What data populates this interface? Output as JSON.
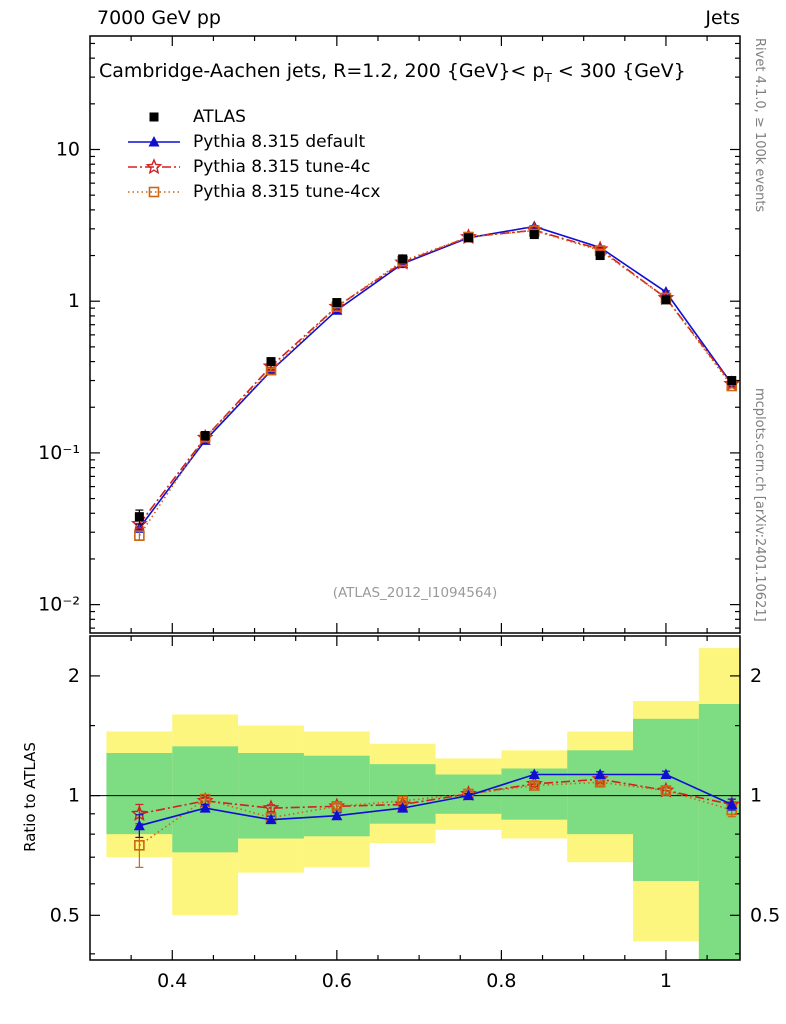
{
  "header": {
    "left": "7000 GeV pp",
    "right": "Jets"
  },
  "title": {
    "pre": "Cambridge-Aachen jets, R=1.2,  200 {GeV}< p",
    "sub": "T",
    "post": " < 300 {GeV}"
  },
  "watermark": "(ATLAS_2012_I1094564)",
  "side_notes": {
    "top_right": "Rivet 4.1.0, ≥ 100k events",
    "bottom_right": "mcplots.cern.ch [arXiv:2401.10621]"
  },
  "ratio_axis_label": "Ratio to ATLAS",
  "chart_data": {
    "type": "line",
    "xlim": [
      0.3,
      1.09
    ],
    "x_minor_step": 0.05,
    "xticks": [
      {
        "v": 0.4,
        "label": "0.4"
      },
      {
        "v": 0.6,
        "label": "0.6"
      },
      {
        "v": 0.8,
        "label": "0.8"
      },
      {
        "v": 1.0,
        "label": "1"
      }
    ],
    "x": [
      0.36,
      0.44,
      0.52,
      0.6,
      0.68,
      0.76,
      0.84,
      0.92,
      1.0,
      1.08
    ],
    "bin_edges": [
      0.32,
      0.4,
      0.48,
      0.56,
      0.64,
      0.72,
      0.8,
      0.88,
      0.96,
      1.04,
      1.12
    ],
    "main_panel": {
      "yscale": "log",
      "ylim": [
        0.0065,
        56
      ],
      "yticks": [
        {
          "v": 10,
          "label": "10"
        },
        {
          "v": 1,
          "label": "1"
        },
        {
          "v": 0.1,
          "label": "10⁻¹"
        },
        {
          "v": 0.01,
          "label": "10⁻²"
        }
      ],
      "series": [
        {
          "name": "ATLAS",
          "color": "#000000",
          "marker": "square-filled",
          "line": "none",
          "values": [
            0.038,
            0.13,
            0.4,
            0.98,
            1.9,
            2.62,
            2.75,
            2.0,
            1.02,
            0.3
          ],
          "yerr": [
            0.004,
            0.008,
            0.015,
            0.03,
            0.05,
            0.07,
            0.07,
            0.06,
            0.04,
            0.015
          ]
        },
        {
          "name": "Pythia 8.315 default",
          "color": "#0f0fd2",
          "marker": "triangle-filled",
          "line": "solid",
          "values": [
            0.032,
            0.121,
            0.348,
            0.872,
            1.77,
            2.62,
            3.11,
            2.26,
            1.15,
            0.285
          ],
          "yerr": [
            0.002,
            0.004,
            0.008,
            0.015,
            0.025,
            0.035,
            0.04,
            0.03,
            0.02,
            0.008
          ]
        },
        {
          "name": "Pythia 8.315 tune-4c",
          "color": "#d22020",
          "marker": "star-open",
          "line": "dashdot",
          "values": [
            0.034,
            0.126,
            0.372,
            0.92,
            1.8,
            2.65,
            2.94,
            2.2,
            1.05,
            0.285
          ],
          "yerr": [
            0.002,
            0.004,
            0.008,
            0.015,
            0.025,
            0.035,
            0.04,
            0.03,
            0.02,
            0.008
          ]
        },
        {
          "name": "Pythia 8.315 tune-4cx",
          "color": "#cc6611",
          "marker": "square-open",
          "line": "dotted",
          "values": [
            0.0285,
            0.127,
            0.352,
            0.92,
            1.84,
            2.65,
            2.92,
            2.16,
            1.05,
            0.276
          ],
          "yerr": [
            0.002,
            0.004,
            0.008,
            0.015,
            0.025,
            0.035,
            0.04,
            0.03,
            0.02,
            0.008
          ]
        }
      ]
    },
    "ratio_panel": {
      "yscale": "log",
      "ylim": [
        0.386,
        2.52
      ],
      "ref_line": 1,
      "yticks": [
        {
          "v": 2,
          "label": "2"
        },
        {
          "v": 1,
          "label": "1"
        },
        {
          "v": 0.5,
          "label": "0.5"
        }
      ],
      "yticks_minor": [
        0.4,
        0.6,
        0.7,
        0.8,
        0.9,
        1.5
      ],
      "bands": [
        {
          "name": "total-uncertainty",
          "color": "#fcf67e",
          "lo": [
            0.7,
            0.5,
            0.64,
            0.66,
            0.76,
            0.82,
            0.78,
            0.68,
            0.43,
            0.3
          ],
          "hi": [
            1.45,
            1.6,
            1.5,
            1.45,
            1.35,
            1.24,
            1.3,
            1.45,
            1.73,
            2.35
          ]
        },
        {
          "name": "stat-uncertainty",
          "color": "#7edc82",
          "lo": [
            0.8,
            0.72,
            0.78,
            0.79,
            0.85,
            0.9,
            0.87,
            0.8,
            0.61,
            0.34
          ],
          "hi": [
            1.28,
            1.33,
            1.28,
            1.26,
            1.2,
            1.13,
            1.17,
            1.3,
            1.56,
            1.7
          ]
        }
      ],
      "series": [
        {
          "name": "Pythia 8.315 tune-4c",
          "values": [
            0.9,
            0.97,
            0.93,
            0.94,
            0.95,
            1.01,
            1.07,
            1.1,
            1.03,
            0.95
          ],
          "yerr": [
            0.05,
            0.02,
            0.018,
            0.015,
            0.013,
            0.012,
            0.015,
            0.018,
            0.022,
            0.03
          ]
        },
        {
          "name": "Pythia 8.315 tune-4cx",
          "values": [
            0.75,
            0.98,
            0.88,
            0.94,
            0.97,
            1.01,
            1.06,
            1.08,
            1.03,
            0.92
          ],
          "yerr": [
            0.09,
            0.025,
            0.02,
            0.016,
            0.013,
            0.012,
            0.015,
            0.018,
            0.022,
            0.035
          ]
        },
        {
          "name": "Pythia 8.315 default",
          "values": [
            0.84,
            0.93,
            0.87,
            0.89,
            0.93,
            1.0,
            1.13,
            1.13,
            1.13,
            0.95
          ],
          "yerr": [
            0.055,
            0.02,
            0.018,
            0.015,
            0.013,
            0.012,
            0.015,
            0.018,
            0.022,
            0.03
          ]
        }
      ]
    }
  }
}
